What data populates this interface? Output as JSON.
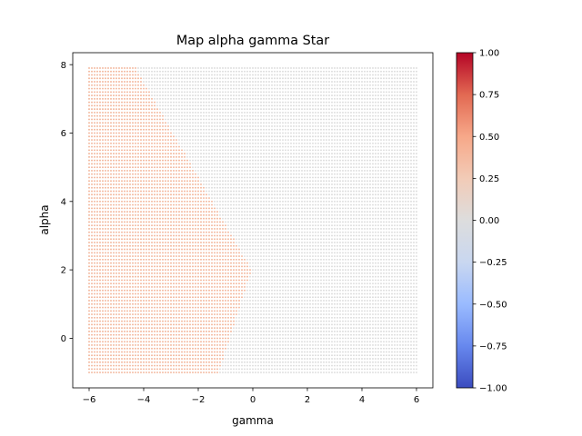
{
  "chart_data": {
    "type": "scatter",
    "title": "Map alpha gamma Star",
    "xlabel": "gamma",
    "ylabel": "alpha",
    "xlim": [
      -6.6,
      6.6
    ],
    "ylim": [
      -1.45,
      8.35
    ],
    "xticks": [
      -6,
      -4,
      -2,
      0,
      2,
      4,
      6
    ],
    "xtick_labels": [
      "−6",
      "−4",
      "−2",
      "0",
      "2",
      "4",
      "6"
    ],
    "yticks": [
      0,
      2,
      4,
      6,
      8
    ],
    "ytick_labels": [
      "0",
      "2",
      "4",
      "6",
      "8"
    ],
    "grid": {
      "x_start": -6.0,
      "x_end": 6.0,
      "x_count": 121,
      "y_start": -1.0,
      "y_end": 7.9,
      "y_count": 90
    },
    "region": {
      "description": "Points with value ~0.4 lie left of a piecewise boundary; others are 0.",
      "boundary": [
        {
          "alpha": -1.0,
          "gamma": -1.25
        },
        {
          "alpha": 2.0,
          "gamma": -0.05
        },
        {
          "alpha": 7.9,
          "gamma": -4.3
        }
      ],
      "inside_value": 0.4,
      "outside_value": 0.0
    },
    "colorbar": {
      "colormap": "coolwarm",
      "min": -1.0,
      "max": 1.0,
      "ticks": [
        1.0,
        0.75,
        0.5,
        0.25,
        0.0,
        -0.25,
        -0.5,
        -0.75,
        -1.0
      ],
      "tick_labels": [
        "1.00",
        "0.75",
        "0.50",
        "0.25",
        "0.00",
        "−0.25",
        "−0.50",
        "−0.75",
        "−1.00"
      ]
    },
    "colors": {
      "coolwarm": [
        "#3b4cc0",
        "#6788ee",
        "#9abbff",
        "#c9d7f0",
        "#dddddd",
        "#f2cbb7",
        "#f7a889",
        "#e26952",
        "#b40426"
      ],
      "inside": "#f2b59a",
      "outside": "#dcdcdc"
    }
  }
}
